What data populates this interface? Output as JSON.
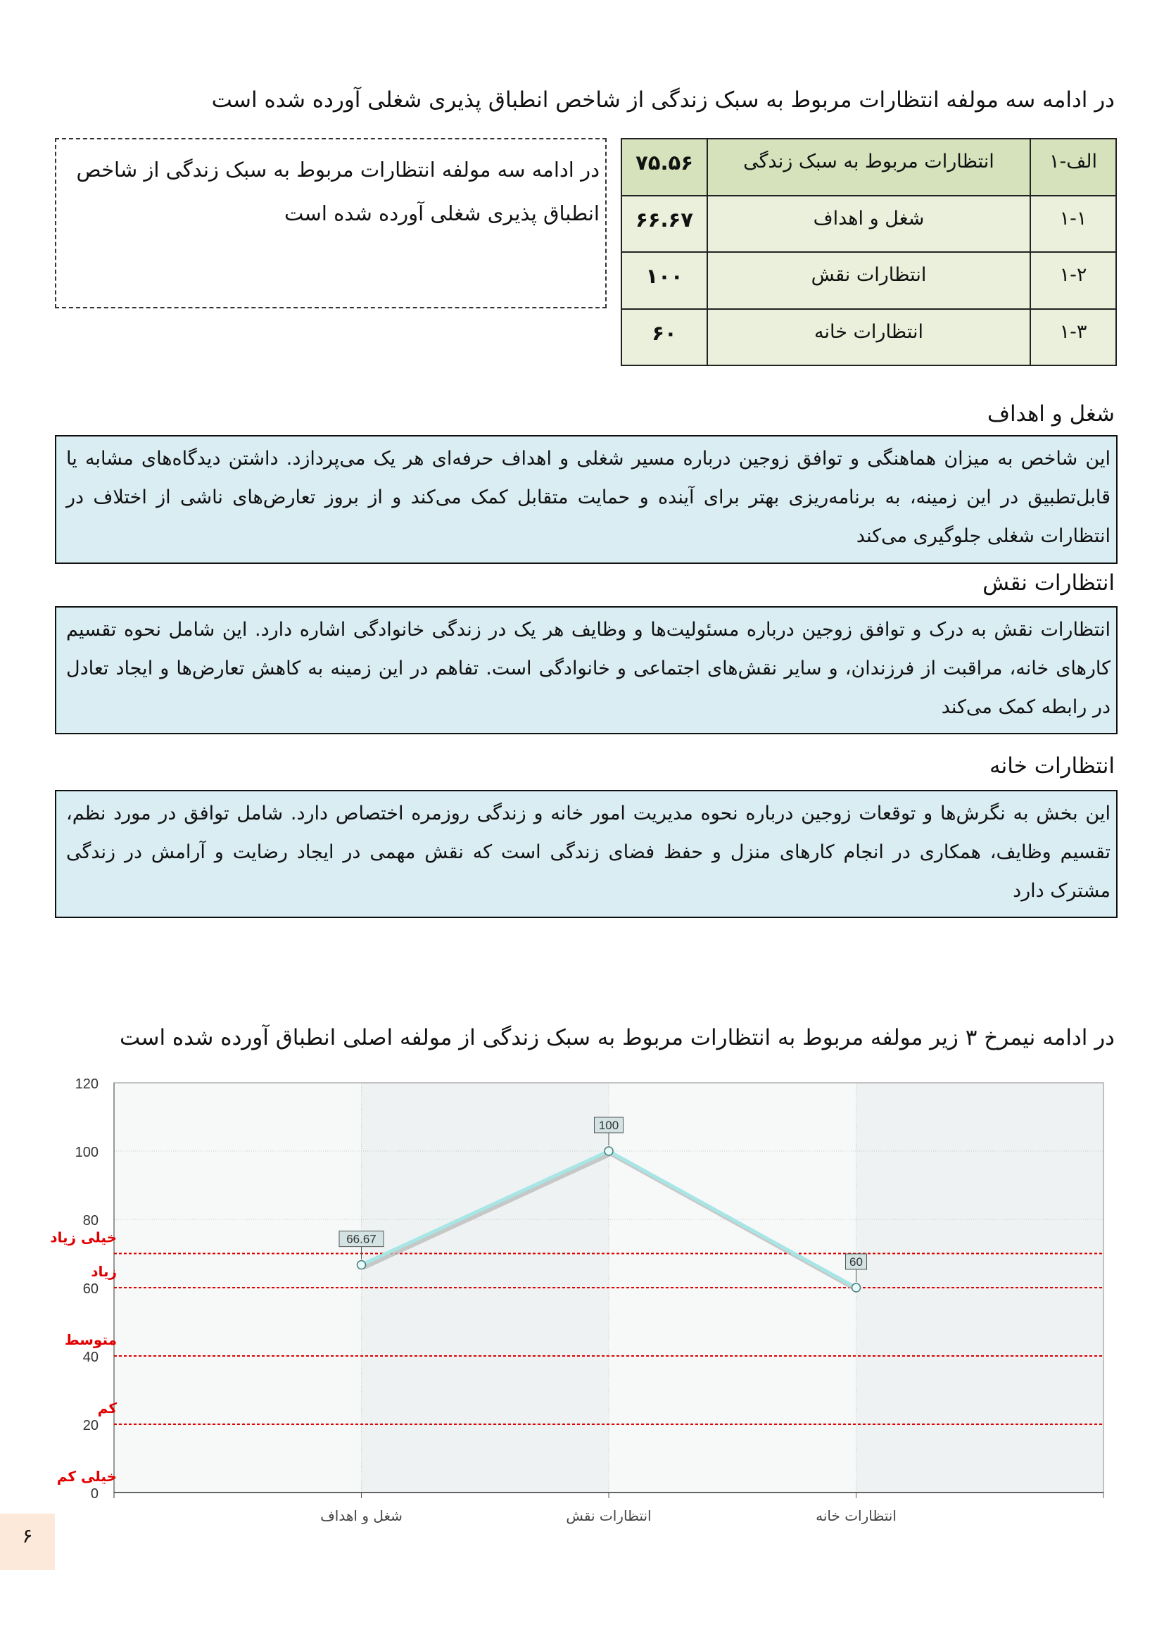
{
  "intro_heading": "در ادامه سه مولفه انتظارات مربوط به سبک زندگی از شاخص انطباق پذیری شغلی آورده شده است",
  "dashed_box_text": "در ادامه سه مولفه انتظارات مربوط به سبک زندگی از شاخص انطباق پذیری شغلی آورده شده است",
  "score_table": {
    "header": {
      "code": "الف-۱",
      "name": "انتظارات مربوط به سبک زندگی",
      "score": "۷۵.۵۶"
    },
    "rows": [
      {
        "code": "۱-۱",
        "name": "شغل و اهداف",
        "score": "۶۶.۶۷"
      },
      {
        "code": "۱-۲",
        "name": "انتظارات نقش",
        "score": "۱۰۰"
      },
      {
        "code": "۱-۳",
        "name": "انتظارات خانه",
        "score": "۶۰"
      }
    ],
    "header_color": "#d5e2bc",
    "row_color": "#ebf0dc"
  },
  "sections": [
    {
      "title": "شغل و اهداف",
      "text": "این شاخص به میزان هماهنگی و توافق زوجین درباره مسیر شغلی و اهداف حرفه‌ای هر یک می‌پردازد. داشتن دیدگاه‌های مشابه یا قابل‌تطبیق در این زمینه، به برنامه‌ریزی بهتر برای آینده و حمایت متقابل کمک می‌کند و از بروز تعارض‌های ناشی از اختلاف در انتظارات شغلی جلوگیری می‌کند"
    },
    {
      "title": "انتظارات نقش",
      "text": "انتظارات نقش به درک و توافق زوجین درباره مسئولیت‌ها و وظایف هر یک در زندگی خانوادگی اشاره دارد. این شامل نحوه تقسیم کارهای خانه، مراقبت از فرزندان، و سایر نقش‌های اجتماعی و خانوادگی است. تفاهم در این زمینه به کاهش تعارض‌ها و ایجاد تعادل در رابطه کمک می‌کند"
    },
    {
      "title": "انتظارات خانه",
      "text": "این بخش به نگرش‌ها و توقعات زوجین درباره نحوه مدیریت امور خانه و زندگی روزمره اختصاص دارد. شامل توافق در مورد نظم، تقسیم وظایف، همکاری در انجام کارهای منزل و حفظ فضای زندگی است که نقش مهمی در ایجاد رضایت و آرامش در زندگی مشترک دارد"
    }
  ],
  "section_box_color": "#daedf3",
  "chart_heading": "در ادامه نیمرخ ۳ زیر مولفه  مربوط به انتظارات مربوط به سبک زندگی از مولفه اصلی انطباق آورده شده است",
  "chart_data": {
    "type": "line",
    "categories": [
      "شغل و اهداف",
      "انتظارات نقش",
      "انتظارات خانه"
    ],
    "values": [
      66.67,
      100,
      60
    ],
    "data_labels": [
      "66.67",
      "100",
      "60"
    ],
    "ylim": [
      0,
      120
    ],
    "yticks": [
      0,
      20,
      40,
      60,
      80,
      100,
      120
    ],
    "grid": true,
    "line_color": "#a8e6e6",
    "thresholds": [
      {
        "value": 70,
        "label": "خیلی زیاد"
      },
      {
        "value": 60,
        "label": "زیاد"
      },
      {
        "value": 40,
        "label": "متوسط"
      },
      {
        "value": 20,
        "label": "کم"
      },
      {
        "value": 0,
        "label": "خیلی کم"
      }
    ],
    "threshold_color": "#e00000"
  },
  "page_number": "۶"
}
